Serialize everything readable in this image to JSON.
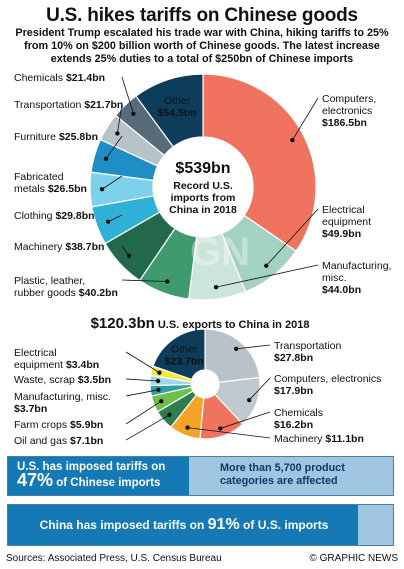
{
  "header": {
    "title": "U.S. hikes tariffs on Chinese goods",
    "subtitle": "President Trump escalated his trade war with China, hiking tariffs to 25% from 10% on $200 billion worth of Chinese goods. The latest increase extends 25% duties to a total of $250bn of Chinese imports"
  },
  "chart_data": [
    {
      "type": "pie",
      "title": "Record U.S. imports from China in 2018",
      "center_value": "$539bn",
      "center_text": [
        "Record U.S.",
        "imports from",
        "China in 2018"
      ],
      "series": [
        {
          "label": "Computers, electronics",
          "value": 186.5,
          "display": "$186.5bn",
          "color": "#f0735f"
        },
        {
          "label": "Electrical equipment",
          "value": 49.9,
          "display": "$49.9bn",
          "color": "#a4d2c0"
        },
        {
          "label": "Manufacturing, misc.",
          "value": 44.0,
          "display": "$44.0bn",
          "color": "#cce5da"
        },
        {
          "label": "Plastic, leather, rubber goods",
          "value": 40.2,
          "display": "$40.2bn",
          "color": "#3f9a6d"
        },
        {
          "label": "Machinery",
          "value": 38.7,
          "display": "$38.7bn",
          "color": "#22694c"
        },
        {
          "label": "Clothing",
          "value": 29.8,
          "display": "$29.8bn",
          "color": "#2fb0d6"
        },
        {
          "label": "Fabricated metals",
          "value": 26.5,
          "display": "$26.5bn",
          "color": "#7ed1ea"
        },
        {
          "label": "Furniture",
          "value": 25.8,
          "display": "$25.8bn",
          "color": "#1e8ec5"
        },
        {
          "label": "Transportation",
          "value": 21.7,
          "display": "$21.7bn",
          "color": "#b7c2c9"
        },
        {
          "label": "Chemicals",
          "value": 21.4,
          "display": "$21.4bn",
          "color": "#566c7a"
        },
        {
          "label": "Other",
          "value": 54.5,
          "display": "$54.5bn",
          "color": "#0e3d5c"
        }
      ]
    },
    {
      "type": "pie",
      "title": "U.S. exports to China in 2018",
      "center_value": "$120.3bn",
      "series": [
        {
          "label": "Transportation",
          "value": 27.8,
          "display": "$27.8bn",
          "color": "#b7c2c9"
        },
        {
          "label": "Computers, electronics",
          "value": 17.9,
          "display": "$17.9bn",
          "color": "#bfc9cf"
        },
        {
          "label": "Chemicals",
          "value": 16.2,
          "display": "$16.2bn",
          "color": "#f0735f"
        },
        {
          "label": "Machinery",
          "value": 11.1,
          "display": "$11.1bn",
          "color": "#f5a42a"
        },
        {
          "label": "Oil and gas",
          "value": 7.1,
          "display": "$7.1bn",
          "color": "#2e7d4f"
        },
        {
          "label": "Farm crops",
          "value": 5.9,
          "display": "$5.9bn",
          "color": "#6dbf4a"
        },
        {
          "label": "Manufacturing, misc.",
          "value": 3.7,
          "display": "$3.7bn",
          "color": "#2aa0a8"
        },
        {
          "label": "Waste, scrap",
          "value": 3.5,
          "display": "$3.5bn",
          "color": "#9ed7e8"
        },
        {
          "label": "Electrical equipment",
          "value": 3.4,
          "display": "$3.4bn",
          "color": "#f6e73c"
        },
        {
          "label": "Other",
          "value": 23.7,
          "display": "$23.7bn",
          "color": "#0e3d5c"
        }
      ]
    }
  ],
  "tariffs": {
    "us": {
      "pre": "U.S. has imposed tariffs on",
      "pct": "47%",
      "post": "of Chinese imports",
      "fraction": 0.47
    },
    "us_note": "More than 5,700 product categories are affected",
    "china": {
      "pre": "China has imposed tariffs on",
      "pct": "91%",
      "post": "of U.S. imports",
      "fraction": 0.91
    }
  },
  "footer": {
    "source": "Sources: Associated Press, U.S. Census Bureau",
    "credit": "© GRAPHIC NEWS"
  }
}
